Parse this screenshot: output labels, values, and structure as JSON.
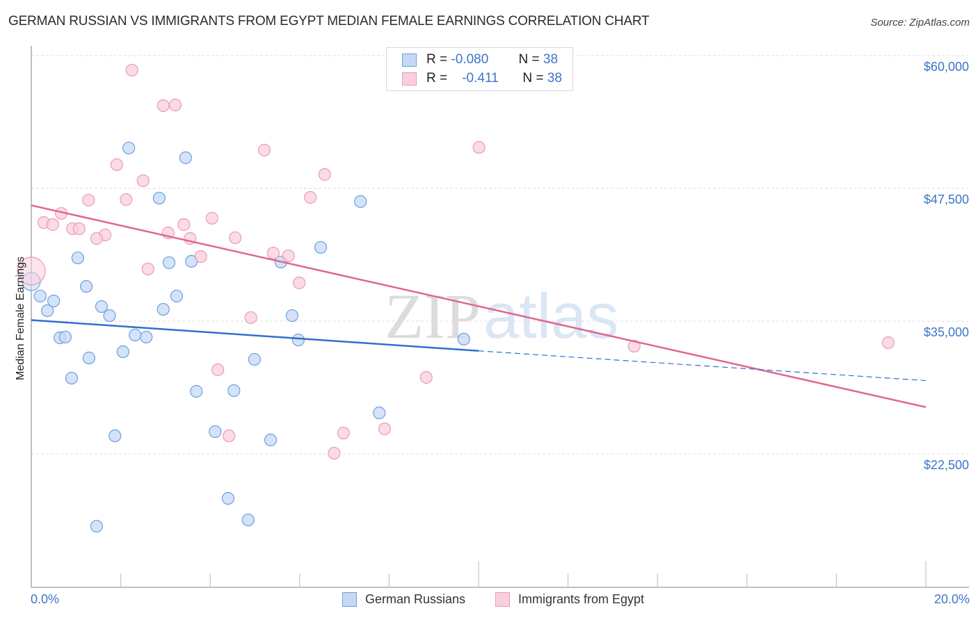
{
  "header": {
    "title": "GERMAN RUSSIAN VS IMMIGRANTS FROM EGYPT MEDIAN FEMALE EARNINGS CORRELATION CHART",
    "source": "Source: ZipAtlas.com"
  },
  "legend": {
    "rows": [
      {
        "r_label": "R =",
        "r_value": "-0.080",
        "n_label": "N =",
        "n_value": "38"
      },
      {
        "r_label": "R =",
        "r_value": "-0.411",
        "n_label": "N =",
        "n_value": "38"
      }
    ],
    "bottom": [
      "German Russians",
      "Immigrants from Egypt"
    ]
  },
  "axes": {
    "ylabel": "Median Female Earnings",
    "yticks": [
      "$60,000",
      "$47,500",
      "$35,000",
      "$22,500"
    ],
    "xticks": [
      "0.0%",
      "20.0%"
    ]
  },
  "watermark": {
    "zip": "ZIP",
    "atlas": "atlas"
  },
  "colors": {
    "blue_fill": "#c5d9f4",
    "blue_stroke": "#6c9ee0",
    "blue_line": "#2f6fce",
    "pink_fill": "#f9cfdc",
    "pink_stroke": "#ec9ab4",
    "pink_line": "#e0668f",
    "axis_text": "#3d74c9"
  },
  "chart_data": {
    "type": "scatter",
    "title": "GERMAN RUSSIAN VS IMMIGRANTS FROM EGYPT MEDIAN FEMALE EARNINGS CORRELATION CHART",
    "xlabel": "",
    "ylabel": "Median Female Earnings",
    "xlim": [
      0,
      20
    ],
    "ylim": [
      10000,
      62000
    ],
    "x_unit": "%",
    "yticks": [
      22500,
      35000,
      47500,
      60000
    ],
    "xticks_labeled": [
      0,
      20
    ],
    "grid": "horizontal dashed",
    "legend_position": "top-center (stats) and bottom (series)",
    "series": [
      {
        "name": "German Russians",
        "R": -0.08,
        "N": 38,
        "color": "#6c9ee0",
        "points": [
          [
            2.18,
            51300
          ],
          [
            3.45,
            50380
          ],
          [
            2.86,
            46580
          ],
          [
            7.36,
            46260
          ],
          [
            6.47,
            41940
          ],
          [
            1.04,
            40950
          ],
          [
            3.08,
            40500
          ],
          [
            3.58,
            40630
          ],
          [
            5.58,
            40560
          ],
          [
            0.0,
            38730
          ],
          [
            1.23,
            38270
          ],
          [
            0.2,
            37360
          ],
          [
            3.25,
            37360
          ],
          [
            0.5,
            36900
          ],
          [
            1.57,
            36370
          ],
          [
            2.95,
            36110
          ],
          [
            0.36,
            35980
          ],
          [
            1.75,
            35520
          ],
          [
            5.83,
            35520
          ],
          [
            2.32,
            33690
          ],
          [
            0.64,
            33430
          ],
          [
            0.76,
            33500
          ],
          [
            2.57,
            33500
          ],
          [
            5.97,
            33230
          ],
          [
            9.67,
            33300
          ],
          [
            2.05,
            32120
          ],
          [
            1.29,
            31530
          ],
          [
            4.99,
            31400
          ],
          [
            0.9,
            29630
          ],
          [
            3.69,
            28390
          ],
          [
            4.53,
            28460
          ],
          [
            7.78,
            26360
          ],
          [
            1.87,
            24200
          ],
          [
            4.11,
            24590
          ],
          [
            5.35,
            23810
          ],
          [
            4.4,
            18310
          ],
          [
            4.85,
            16280
          ],
          [
            1.46,
            15690
          ]
        ],
        "trend": {
          "x0": 0,
          "y0": 35100,
          "x1": 10,
          "y1": 32200,
          "dashed_extension_to": [
            20,
            29400
          ]
        }
      },
      {
        "name": "Immigrants from Egypt",
        "R": -0.411,
        "N": 38,
        "color": "#ec9ab4",
        "points": [
          [
            2.25,
            58630
          ],
          [
            2.95,
            55290
          ],
          [
            3.22,
            55350
          ],
          [
            5.21,
            51100
          ],
          [
            10.01,
            51360
          ],
          [
            1.91,
            49730
          ],
          [
            6.56,
            48810
          ],
          [
            2.5,
            48220
          ],
          [
            6.24,
            46650
          ],
          [
            1.28,
            46390
          ],
          [
            2.12,
            46450
          ],
          [
            0.67,
            45140
          ],
          [
            4.04,
            44690
          ],
          [
            0.28,
            44290
          ],
          [
            0.48,
            44090
          ],
          [
            3.41,
            44090
          ],
          [
            0.92,
            43700
          ],
          [
            1.07,
            43700
          ],
          [
            3.06,
            43310
          ],
          [
            1.65,
            43110
          ],
          [
            1.46,
            42780
          ],
          [
            4.56,
            42850
          ],
          [
            3.55,
            42780
          ],
          [
            5.41,
            41410
          ],
          [
            5.75,
            41150
          ],
          [
            3.79,
            41080
          ],
          [
            2.61,
            39910
          ],
          [
            0.0,
            39710
          ],
          [
            5.99,
            38600
          ],
          [
            4.91,
            35330
          ],
          [
            13.48,
            32640
          ],
          [
            19.16,
            32970
          ],
          [
            4.17,
            30420
          ],
          [
            8.83,
            29700
          ],
          [
            4.42,
            24200
          ],
          [
            6.98,
            24460
          ],
          [
            7.9,
            24850
          ],
          [
            6.77,
            22560
          ]
        ],
        "trend": {
          "x0": 0,
          "y0": 45900,
          "x1": 20,
          "y1": 26900
        }
      }
    ]
  }
}
